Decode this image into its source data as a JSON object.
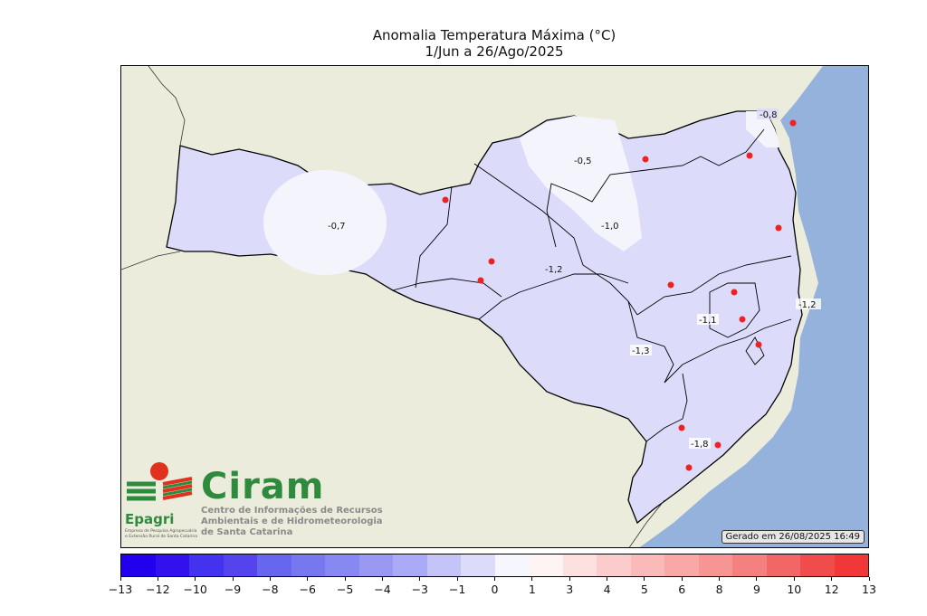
{
  "title": {
    "line1": "Anomalia Temperatura Máxima (°C)",
    "line2": "1/Jun a 26/Ago/2025"
  },
  "map": {
    "land_color": "#ececdc",
    "ocean_color": "#94b2dc",
    "region_labels": [
      "-0,8",
      "-0,5",
      "-0,7",
      "-1,0",
      "-1,2",
      "-1,2",
      "-1,1",
      "-1,3",
      "-1,8"
    ],
    "station_color": "#ee2222"
  },
  "logo": {
    "ciram": "Ciram",
    "ciram_sub": [
      "Centro de Informações de Recursos",
      "Ambientais e de Hidrometeorologia",
      "de Santa Catarina"
    ],
    "epagri": "Epagri",
    "epagri_sub": [
      "Empresa de Pesquisa Agropecuária",
      "e Extensão Rural de Santa Catarina"
    ]
  },
  "stamp": "Gerado em 26/08/2025 16:49",
  "colorbar": {
    "colors": [
      "#2200ee",
      "#3311ee",
      "#4433ee",
      "#5544ee",
      "#6666ee",
      "#7777f0",
      "#8888f2",
      "#9999f4",
      "#aaaaf6",
      "#c4c4f8",
      "#dcdcfa",
      "#f6f6ff",
      "#fff4f4",
      "#fde0e0",
      "#fccccc",
      "#fbbaba",
      "#f9a8a8",
      "#f79494",
      "#f58080",
      "#f36666",
      "#f14c4c",
      "#f03838"
    ],
    "tick_labels": [
      "−13",
      "−12",
      "−10",
      "−9",
      "−8",
      "−6",
      "−5",
      "−4",
      "−3",
      "−1",
      "0",
      "1",
      "3",
      "4",
      "5",
      "6",
      "8",
      "9",
      "10",
      "12",
      "13"
    ]
  }
}
